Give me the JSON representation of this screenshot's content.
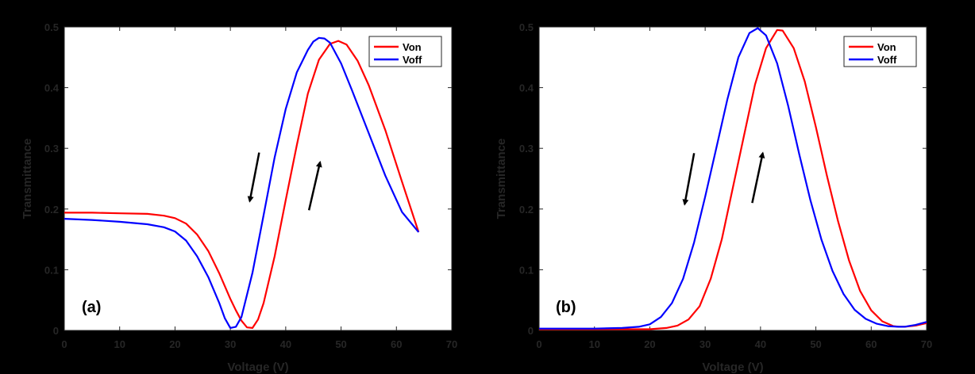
{
  "chart_data": [
    {
      "type": "line",
      "panel_label": "(a)",
      "xlabel": "Voltage (V)",
      "ylabel": "Transmittance",
      "xlim": [
        0,
        70
      ],
      "ylim": [
        0,
        0.5
      ],
      "xticks": [
        0,
        10,
        20,
        30,
        40,
        50,
        60,
        70
      ],
      "yticks": [
        0,
        0.1,
        0.2,
        0.3,
        0.4,
        0.5
      ],
      "legend_position": "top-right",
      "series": [
        {
          "name": "Von",
          "color": "#ff0000",
          "x": [
            0,
            5,
            10,
            15,
            18,
            20,
            22,
            24,
            26,
            28,
            30,
            31,
            32,
            33,
            34,
            35,
            36,
            38,
            40,
            42,
            44,
            46,
            48,
            49.5,
            51,
            53,
            55,
            58,
            61,
            64
          ],
          "y": [
            0.194,
            0.194,
            0.193,
            0.192,
            0.189,
            0.185,
            0.176,
            0.158,
            0.131,
            0.094,
            0.052,
            0.033,
            0.016,
            0.005,
            0.004,
            0.018,
            0.045,
            0.122,
            0.215,
            0.305,
            0.39,
            0.446,
            0.472,
            0.477,
            0.471,
            0.444,
            0.404,
            0.33,
            0.245,
            0.162
          ]
        },
        {
          "name": "Voff",
          "color": "#0000ff",
          "x": [
            0,
            5,
            10,
            15,
            18,
            20,
            22,
            24,
            26,
            28,
            29,
            30,
            31,
            32,
            34,
            36,
            38,
            40,
            42,
            44,
            45,
            46,
            47,
            48,
            50,
            52,
            55,
            58,
            61,
            64
          ],
          "y": [
            0.184,
            0.182,
            0.179,
            0.175,
            0.17,
            0.163,
            0.148,
            0.122,
            0.088,
            0.045,
            0.02,
            0.004,
            0.006,
            0.022,
            0.095,
            0.19,
            0.285,
            0.365,
            0.425,
            0.462,
            0.476,
            0.482,
            0.481,
            0.474,
            0.44,
            0.395,
            0.325,
            0.255,
            0.195,
            0.162
          ]
        }
      ],
      "annotations": [
        {
          "type": "arrow",
          "direction": "down",
          "from": [
            35.2,
            0.293
          ],
          "to": [
            33.5,
            0.213
          ]
        },
        {
          "type": "arrow",
          "direction": "up",
          "from": [
            44.2,
            0.198
          ],
          "to": [
            46.2,
            0.277
          ]
        }
      ]
    },
    {
      "type": "line",
      "panel_label": "(b)",
      "xlabel": "Voltage (V)",
      "ylabel": "Transmittance",
      "xlim": [
        0,
        70
      ],
      "ylim": [
        0,
        0.5
      ],
      "xticks": [
        0,
        10,
        20,
        30,
        40,
        50,
        60,
        70
      ],
      "yticks": [
        0,
        0.1,
        0.2,
        0.3,
        0.4,
        0.5
      ],
      "legend_position": "top-right",
      "series": [
        {
          "name": "Von",
          "color": "#ff0000",
          "x": [
            0,
            10,
            15,
            20,
            23,
            25,
            27,
            29,
            31,
            33,
            35,
            37,
            39,
            41,
            43,
            44,
            46,
            48,
            50,
            52,
            54,
            56,
            58,
            60,
            62,
            64,
            65,
            66,
            67,
            68,
            70
          ],
          "y": [
            0.002,
            0.002,
            0.002,
            0.002,
            0.004,
            0.008,
            0.018,
            0.04,
            0.085,
            0.15,
            0.235,
            0.32,
            0.405,
            0.465,
            0.495,
            0.494,
            0.465,
            0.41,
            0.335,
            0.255,
            0.18,
            0.115,
            0.065,
            0.033,
            0.015,
            0.007,
            0.006,
            0.006,
            0.007,
            0.008,
            0.012
          ]
        },
        {
          "name": "Voff",
          "color": "#0000ff",
          "x": [
            0,
            10,
            15,
            18,
            20,
            22,
            24,
            26,
            28,
            30,
            32,
            34,
            36,
            38,
            39.5,
            41,
            43,
            45,
            47,
            49,
            51,
            53,
            55,
            57,
            59,
            61,
            63,
            65,
            66,
            68,
            70
          ],
          "y": [
            0.003,
            0.003,
            0.004,
            0.006,
            0.01,
            0.022,
            0.045,
            0.085,
            0.145,
            0.22,
            0.3,
            0.38,
            0.45,
            0.49,
            0.498,
            0.486,
            0.44,
            0.37,
            0.29,
            0.215,
            0.15,
            0.098,
            0.06,
            0.034,
            0.019,
            0.011,
            0.007,
            0.006,
            0.006,
            0.009,
            0.014
          ]
        }
      ],
      "annotations": [
        {
          "type": "arrow",
          "direction": "down",
          "from": [
            28,
            0.292
          ],
          "to": [
            26.3,
            0.208
          ]
        },
        {
          "type": "arrow",
          "direction": "up",
          "from": [
            38.5,
            0.21
          ],
          "to": [
            40.4,
            0.292
          ]
        }
      ]
    }
  ]
}
